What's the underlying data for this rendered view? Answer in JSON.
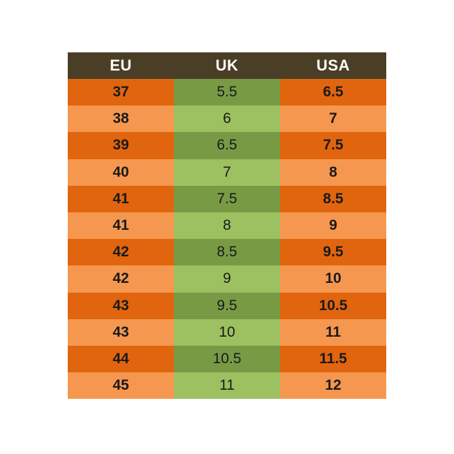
{
  "table": {
    "headers": [
      "EU",
      "UK",
      "USA"
    ],
    "rows": [
      [
        "37",
        "5.5",
        "6.5"
      ],
      [
        "38",
        "6",
        "7"
      ],
      [
        "39",
        "6.5",
        "7.5"
      ],
      [
        "40",
        "7",
        "8"
      ],
      [
        "41",
        "7.5",
        "8.5"
      ],
      [
        "41",
        "8",
        "9"
      ],
      [
        "42",
        "8.5",
        "9.5"
      ],
      [
        "42",
        "9",
        "10"
      ],
      [
        "43",
        "9.5",
        "10.5"
      ],
      [
        "43",
        "10",
        "11"
      ],
      [
        "44",
        "10.5",
        "11.5"
      ],
      [
        "45",
        "11",
        "12"
      ]
    ]
  },
  "colors": {
    "header_bg": "#4a3f26",
    "header_text": "#ffffff",
    "orange_dark": "#e0650e",
    "orange_light": "#f5974f",
    "green_dark": "#789a45",
    "green_light": "#9dc060"
  }
}
